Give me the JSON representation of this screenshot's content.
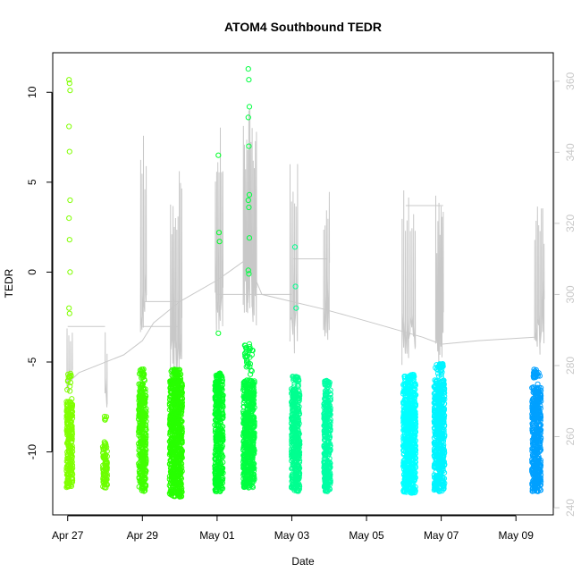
{
  "chart_data": {
    "type": "scatter",
    "title": "ATOM4 Southbound TEDR",
    "xlabel": "Date",
    "ylabel": "TEDR",
    "x_unit": "days since Apr 27 00:00",
    "xlim": [
      -0.4,
      13.0
    ],
    "ylim": [
      -13.5,
      12.2
    ],
    "y2lim": [
      238,
      368
    ],
    "x_ticks": [
      {
        "x": 0,
        "label": "Apr 27"
      },
      {
        "x": 2,
        "label": "Apr 29"
      },
      {
        "x": 4,
        "label": "May 01"
      },
      {
        "x": 6,
        "label": "May 03"
      },
      {
        "x": 8,
        "label": "May 05"
      },
      {
        "x": 10,
        "label": "May 07"
      },
      {
        "x": 12,
        "label": "May 09"
      }
    ],
    "y_ticks": [
      -10,
      -5,
      0,
      5,
      10
    ],
    "y2_ticks": [
      240,
      260,
      280,
      300,
      320,
      340,
      360
    ],
    "secondary_axis_color": "#c8c8c8",
    "background_line_color": "#c8c8c8",
    "clusters": [
      {
        "name": "Apr 27 AM",
        "x_center": 0.05,
        "x_width": 0.16,
        "dense_range": [
          -12.0,
          -7.2
        ],
        "n_dense": 230,
        "sparse_top": -5.6,
        "color": "#80ff00",
        "outliers": [
          10.7,
          10.5,
          10.1,
          8.1,
          6.7,
          4.0,
          3.0,
          1.8,
          0.0,
          -2.0,
          -2.3
        ]
      },
      {
        "name": "Apr 28 AM",
        "x_center": 1.0,
        "x_width": 0.12,
        "dense_range": [
          -12.0,
          -9.4
        ],
        "n_dense": 90,
        "sparse_top": -8.0,
        "color": "#6cff00",
        "outliers": []
      },
      {
        "name": "Apr 29 AM",
        "x_center": 2.0,
        "x_width": 0.2,
        "dense_range": [
          -12.2,
          -6.2
        ],
        "n_dense": 320,
        "sparse_top": -5.4,
        "color": "#40ff00",
        "outliers": []
      },
      {
        "name": "Apr 30 AM",
        "x_center": 2.9,
        "x_width": 0.34,
        "dense_range": [
          -12.5,
          -6.0
        ],
        "n_dense": 650,
        "sparse_top": -5.4,
        "color": "#28ff00",
        "outliers": []
      },
      {
        "name": "May 01 AM",
        "x_center": 4.05,
        "x_width": 0.22,
        "dense_range": [
          -12.2,
          -6.0
        ],
        "n_dense": 360,
        "sparse_top": -5.6,
        "color": "#00ff28",
        "outliers": [
          6.5,
          2.2,
          1.7,
          -3.4
        ]
      },
      {
        "name": "May 01 PM",
        "x_center": 4.85,
        "x_width": 0.3,
        "dense_range": [
          -12.0,
          -6.0
        ],
        "n_dense": 500,
        "sparse_top": -4.0,
        "color": "#00ff40",
        "outliers": [
          11.3,
          10.7,
          9.2,
          8.6,
          7.0,
          4.3,
          4.0,
          3.6,
          1.9,
          0.1,
          -0.1,
          -4.0,
          -5.1
        ]
      },
      {
        "name": "May 03 AM",
        "x_center": 6.1,
        "x_width": 0.22,
        "dense_range": [
          -12.2,
          -6.5
        ],
        "n_dense": 380,
        "sparse_top": -5.8,
        "color": "#00ff90",
        "outliers": [
          1.4,
          -0.8,
          -2.0
        ]
      },
      {
        "name": "May 03 PM",
        "x_center": 6.95,
        "x_width": 0.18,
        "dense_range": [
          -12.2,
          -6.5
        ],
        "n_dense": 300,
        "sparse_top": -6.0,
        "color": "#00ffa4",
        "outliers": []
      },
      {
        "name": "May 06",
        "x_center": 9.15,
        "x_width": 0.34,
        "dense_range": [
          -12.3,
          -6.2
        ],
        "n_dense": 600,
        "sparse_top": -5.7,
        "color": "#00ffff",
        "outliers": []
      },
      {
        "name": "May 07",
        "x_center": 9.95,
        "x_width": 0.28,
        "dense_range": [
          -12.2,
          -6.0
        ],
        "n_dense": 500,
        "sparse_top": -5.1,
        "color": "#00f4ff",
        "outliers": []
      },
      {
        "name": "May 09",
        "x_center": 12.55,
        "x_width": 0.24,
        "dense_range": [
          -12.2,
          -6.4
        ],
        "n_dense": 420,
        "sparse_top": -5.4,
        "color": "#00a0ff",
        "outliers": []
      }
    ],
    "secondary_series": {
      "name": "background trace (right axis)",
      "polyline": [
        [
          0.0,
          275
        ],
        [
          0.3,
          278
        ],
        [
          1.5,
          283
        ],
        [
          2.0,
          287
        ],
        [
          2.3,
          292
        ],
        [
          3.0,
          298
        ],
        [
          4.0,
          304
        ],
        [
          4.8,
          310
        ],
        [
          5.2,
          300
        ],
        [
          6.0,
          298
        ],
        [
          6.8,
          296
        ],
        [
          7.5,
          294
        ],
        [
          8.5,
          291
        ],
        [
          9.5,
          288
        ],
        [
          10.0,
          286
        ],
        [
          11.0,
          287
        ],
        [
          12.5,
          288
        ]
      ],
      "plateaus": [
        [
          0.0,
          1.0,
          291
        ],
        [
          2.0,
          3.0,
          291
        ],
        [
          2.05,
          3.0,
          298
        ],
        [
          4.0,
          4.9,
          300
        ],
        [
          4.9,
          6.0,
          300
        ],
        [
          6.05,
          6.95,
          310
        ],
        [
          9.05,
          10.05,
          325
        ]
      ],
      "spike_groups": [
        {
          "x_start": -0.02,
          "x_end": 0.12,
          "count": 4,
          "min": 272,
          "max": 294
        },
        {
          "x_start": 1.0,
          "x_end": 1.05,
          "count": 2,
          "min": 266,
          "max": 291
        },
        {
          "x_start": 1.95,
          "x_end": 2.1,
          "count": 5,
          "min": 286,
          "max": 345
        },
        {
          "x_start": 2.75,
          "x_end": 3.05,
          "count": 10,
          "min": 276,
          "max": 337
        },
        {
          "x_start": 3.95,
          "x_end": 4.15,
          "count": 7,
          "min": 288,
          "max": 350
        },
        {
          "x_start": 4.7,
          "x_end": 5.05,
          "count": 13,
          "min": 290,
          "max": 353
        },
        {
          "x_start": 5.95,
          "x_end": 6.15,
          "count": 6,
          "min": 282,
          "max": 339
        },
        {
          "x_start": 6.85,
          "x_end": 7.0,
          "count": 5,
          "min": 287,
          "max": 330
        },
        {
          "x_start": 8.95,
          "x_end": 9.3,
          "count": 9,
          "min": 278,
          "max": 333
        },
        {
          "x_start": 9.85,
          "x_end": 10.05,
          "count": 8,
          "min": 279,
          "max": 328
        },
        {
          "x_start": 12.5,
          "x_end": 12.75,
          "count": 8,
          "min": 282,
          "max": 326
        }
      ]
    }
  }
}
